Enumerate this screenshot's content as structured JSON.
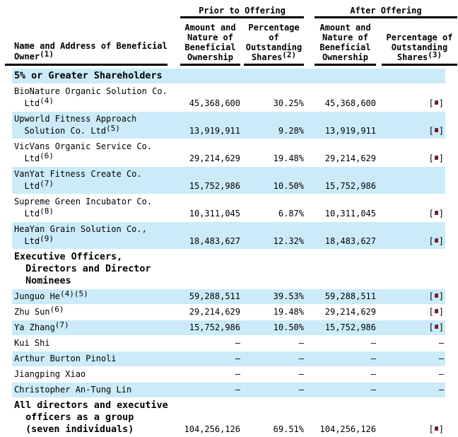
{
  "table": {
    "group_headers": {
      "prior": "Prior to Offering",
      "after": "After Offering"
    },
    "columns": {
      "name": {
        "lines": [
          "Name and Address of Beneficial",
          "Owner"
        ],
        "sup": "(1)"
      },
      "prior_amount": {
        "lines": [
          "Amount and",
          "Nature of",
          "Beneficial",
          "Ownership"
        ]
      },
      "prior_pct": {
        "lines": [
          "Percentage",
          "of",
          "Outstanding",
          "Shares"
        ],
        "sup": "(2)"
      },
      "after_amount": {
        "lines": [
          "Amount and",
          "Nature of",
          "Beneficial",
          "Ownership"
        ]
      },
      "after_pct": {
        "lines": [
          "Percentage of",
          "Outstanding",
          "Shares"
        ],
        "sup": "(3)"
      }
    },
    "placeholder_symbol": "[•]",
    "dash": "—",
    "colors": {
      "row_highlight": "#CCEBF9",
      "bullet_red": "#7B1D20",
      "bullet_blue": "#3B4FD8",
      "text": "#000000"
    },
    "rows": [
      {
        "kind": "section",
        "shaded": true,
        "name": [
          {
            "text": "5% or Greater Shareholders"
          }
        ]
      },
      {
        "kind": "data",
        "shaded": false,
        "name": [
          {
            "text": "BioNature Organic Solution Co."
          },
          {
            "text": "  Ltd",
            "sup": "(4)"
          }
        ],
        "prior_amount": "45,368,600",
        "prior_pct": "30.25%",
        "after_amount": "45,368,600",
        "after_pct": "[•]"
      },
      {
        "kind": "data",
        "shaded": true,
        "name": [
          {
            "text": "Upworld Fitness Approach"
          },
          {
            "text": "  Solution Co. Ltd",
            "sup": "(5)"
          }
        ],
        "prior_amount": "13,919,911",
        "prior_pct": "9.28%",
        "after_amount": "13,919,911",
        "after_pct": "[•]"
      },
      {
        "kind": "data",
        "shaded": false,
        "name": [
          {
            "text": "VicVans Organic Service Co."
          },
          {
            "text": "  Ltd",
            "sup": "(6)"
          }
        ],
        "prior_amount": "29,214,629",
        "prior_pct": "19.48%",
        "after_amount": "29,214,629",
        "after_pct": "[•]"
      },
      {
        "kind": "data",
        "shaded": true,
        "name": [
          {
            "text": "VanYat Fitness Create Co."
          },
          {
            "text": "  Ltd",
            "sup": "(7)"
          }
        ],
        "prior_amount": "15,752,986",
        "prior_pct": "10.50%",
        "after_amount": "15,752,986",
        "after_pct": ""
      },
      {
        "kind": "data",
        "shaded": false,
        "name": [
          {
            "text": "Supreme Green Incubator Co."
          },
          {
            "text": "  Ltd",
            "sup": "(8)"
          }
        ],
        "prior_amount": "10,311,045",
        "prior_pct": "6.87%",
        "after_amount": "10,311,045",
        "after_pct": "[•]"
      },
      {
        "kind": "data",
        "shaded": true,
        "name": [
          {
            "text": "HeaYan Grain Solution Co.,"
          },
          {
            "text": "  Ltd",
            "sup": "(9)"
          }
        ],
        "prior_amount": "18,483,627",
        "prior_pct": "12.32%",
        "after_amount": "18,483,627",
        "after_pct": "[•]"
      },
      {
        "kind": "section",
        "shaded": false,
        "name": [
          {
            "text": "Executive Officers,"
          },
          {
            "text": "  Directors and Director"
          },
          {
            "text": "  Nominees"
          }
        ]
      },
      {
        "kind": "data",
        "shaded": true,
        "name": [
          {
            "text": "Junguo He",
            "sup": "(4)(5)"
          }
        ],
        "prior_amount": "59,288,511",
        "prior_pct": "39.53%",
        "after_amount": "59,288,511",
        "after_pct": "[•]"
      },
      {
        "kind": "data",
        "shaded": false,
        "name": [
          {
            "text": "Zhu Sun",
            "sup": "(6)"
          }
        ],
        "prior_amount": "29,214,629",
        "prior_pct": "19.48%",
        "after_amount": "29,214,629",
        "after_pct": "[•]"
      },
      {
        "kind": "data",
        "shaded": true,
        "name": [
          {
            "text": "Ya Zhang",
            "sup": "(7)"
          }
        ],
        "prior_amount": "15,752,986",
        "prior_pct": "10.50%",
        "after_amount": "15,752,986",
        "after_pct": "[•]"
      },
      {
        "kind": "data",
        "shaded": false,
        "name": [
          {
            "text": "Kui Shi"
          }
        ],
        "prior_amount": "—",
        "prior_pct": "—",
        "after_amount": "—",
        "after_pct": "—"
      },
      {
        "kind": "data",
        "shaded": true,
        "name": [
          {
            "text": "Arthur Burton Pinoli"
          }
        ],
        "prior_amount": "—",
        "prior_pct": "—",
        "after_amount": "—",
        "after_pct": "—"
      },
      {
        "kind": "data",
        "shaded": false,
        "name": [
          {
            "text": "Jiangping Xiao"
          }
        ],
        "prior_amount": "—",
        "prior_pct": "—",
        "after_amount": "—",
        "after_pct": "—"
      },
      {
        "kind": "data",
        "shaded": true,
        "name": [
          {
            "text": "Christopher An-Tung Lin"
          }
        ],
        "prior_amount": "—",
        "prior_pct": "—",
        "after_amount": "—",
        "after_pct": "—"
      },
      {
        "kind": "data",
        "shaded": false,
        "bold": true,
        "name": [
          {
            "text": "All directors and executive"
          },
          {
            "text": "  officers as a group"
          },
          {
            "text": "  (seven individuals)"
          }
        ],
        "prior_amount": "104,256,126",
        "prior_pct": "69.51%",
        "after_amount": "104,256,126",
        "after_pct": "[•]"
      }
    ]
  }
}
